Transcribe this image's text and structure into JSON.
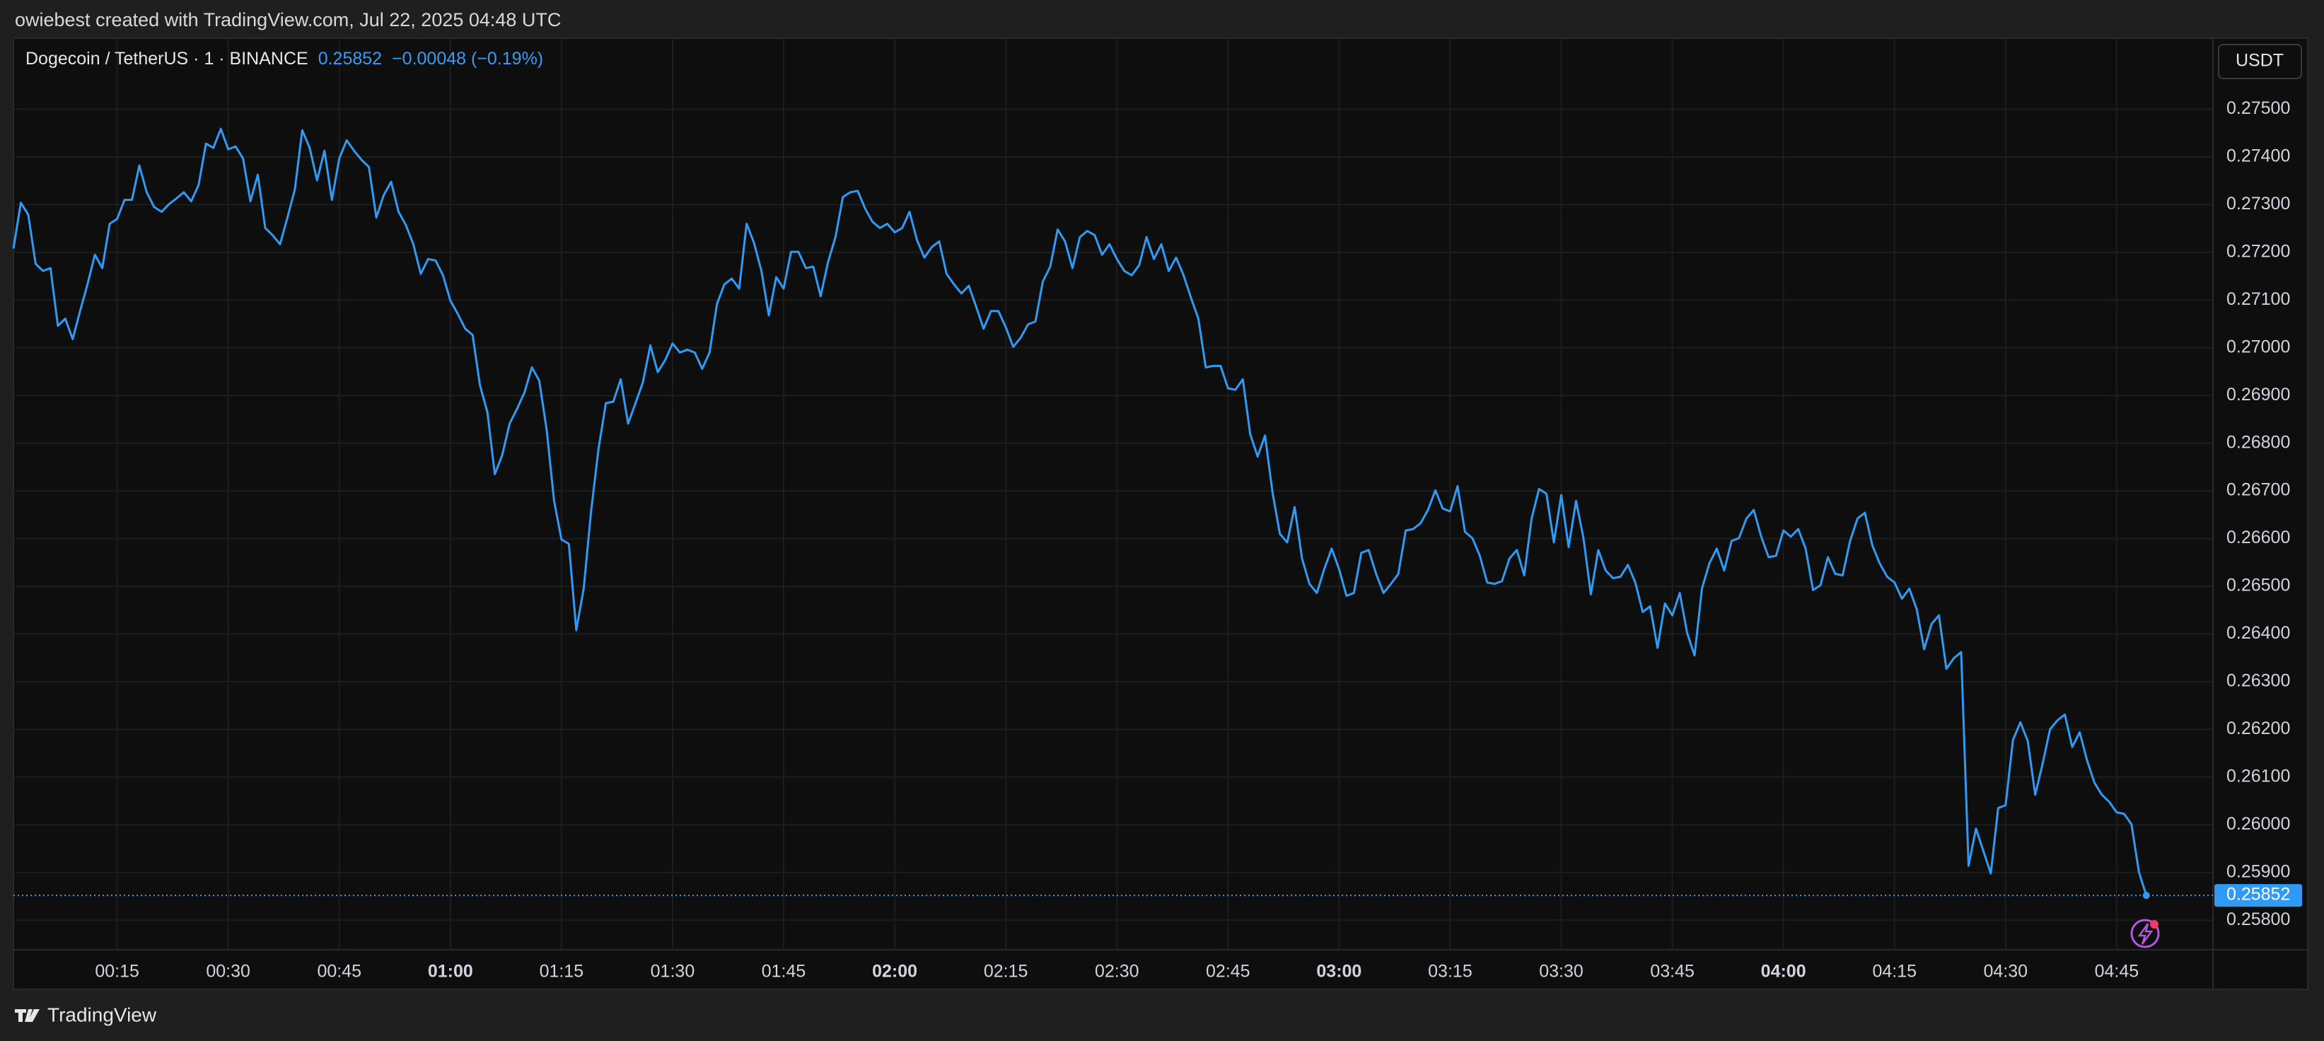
{
  "header": "owiebest created with TradingView.com, Jul 22, 2025 04:48 UTC",
  "footer": "TradingView",
  "chart_data": {
    "type": "line",
    "title": "Dogecoin / TetherUS · 1 · BINANCE",
    "change": "−0.00048 (−0.19%)",
    "currency": "USDT",
    "color": "#2f9bf5",
    "grid": true,
    "xlim": [
      "00:01",
      "04:58"
    ],
    "ylim": [
      0.25738,
      0.27649
    ],
    "xticks": [
      "00:15",
      "00:30",
      "00:45",
      "01:00",
      "01:15",
      "01:30",
      "01:45",
      "02:00",
      "02:15",
      "02:30",
      "02:45",
      "03:00",
      "03:15",
      "03:30",
      "03:45",
      "04:00",
      "04:15",
      "04:30",
      "04:45"
    ],
    "yticks": [
      {
        "value": 0.258,
        "label": "0.25800"
      },
      {
        "value": 0.259,
        "label": "0.25900"
      },
      {
        "value": 0.26,
        "label": "0.26000"
      },
      {
        "value": 0.261,
        "label": "0.26100"
      },
      {
        "value": 0.262,
        "label": "0.26200"
      },
      {
        "value": 0.263,
        "label": "0.26300"
      },
      {
        "value": 0.264,
        "label": "0.26400"
      },
      {
        "value": 0.265,
        "label": "0.26500"
      },
      {
        "value": 0.266,
        "label": "0.26600"
      },
      {
        "value": 0.267,
        "label": "0.26700"
      },
      {
        "value": 0.268,
        "label": "0.26800"
      },
      {
        "value": 0.269,
        "label": "0.26900"
      },
      {
        "value": 0.27,
        "label": "0.27000"
      },
      {
        "value": 0.271,
        "label": "0.27100"
      },
      {
        "value": 0.272,
        "label": "0.27200"
      },
      {
        "value": 0.273,
        "label": "0.27300"
      },
      {
        "value": 0.274,
        "label": "0.27400"
      },
      {
        "value": 0.275,
        "label": "0.27500"
      }
    ],
    "x": [
      "00:01",
      "00:02",
      "00:03",
      "00:04",
      "00:05",
      "00:06",
      "00:07",
      "00:08",
      "00:09",
      "00:10",
      "00:11",
      "00:12",
      "00:13",
      "00:14",
      "00:15",
      "00:16",
      "00:17",
      "00:18",
      "00:19",
      "00:20",
      "00:21",
      "00:22",
      "00:23",
      "00:24",
      "00:25",
      "00:26",
      "00:27",
      "00:28",
      "00:29",
      "00:30",
      "00:31",
      "00:32",
      "00:33",
      "00:34",
      "00:35",
      "00:36",
      "00:37",
      "00:38",
      "00:39",
      "00:40",
      "00:41",
      "00:42",
      "00:43",
      "00:44",
      "00:45",
      "00:46",
      "00:47",
      "00:48",
      "00:49",
      "00:50",
      "00:51",
      "00:52",
      "00:53",
      "00:54",
      "00:55",
      "00:56",
      "00:57",
      "00:58",
      "00:59",
      "01:00",
      "01:01",
      "01:02",
      "01:03",
      "01:04",
      "01:05",
      "01:06",
      "01:07",
      "01:08",
      "01:09",
      "01:10",
      "01:11",
      "01:12",
      "01:13",
      "01:14",
      "01:15",
      "01:16",
      "01:17",
      "01:18",
      "01:19",
      "01:20",
      "01:21",
      "01:22",
      "01:23",
      "01:24",
      "01:25",
      "01:26",
      "01:27",
      "01:28",
      "01:29",
      "01:30",
      "01:31",
      "01:32",
      "01:33",
      "01:34",
      "01:35",
      "01:36",
      "01:37",
      "01:38",
      "01:39",
      "01:40",
      "01:41",
      "01:42",
      "01:43",
      "01:44",
      "01:45",
      "01:46",
      "01:47",
      "01:48",
      "01:49",
      "01:50",
      "01:51",
      "01:52",
      "01:53",
      "01:54",
      "01:55",
      "01:56",
      "01:57",
      "01:58",
      "01:59",
      "02:00",
      "02:01",
      "02:02",
      "02:03",
      "02:04",
      "02:05",
      "02:06",
      "02:07",
      "02:08",
      "02:09",
      "02:10",
      "02:11",
      "02:12",
      "02:13",
      "02:14",
      "02:15",
      "02:16",
      "02:17",
      "02:18",
      "02:19",
      "02:20",
      "02:21",
      "02:22",
      "02:23",
      "02:24",
      "02:25",
      "02:26",
      "02:27",
      "02:28",
      "02:29",
      "02:30",
      "02:31",
      "02:32",
      "02:33",
      "02:34",
      "02:35",
      "02:36",
      "02:37",
      "02:38",
      "02:39",
      "02:40",
      "02:41",
      "02:42",
      "02:43",
      "02:44",
      "02:45",
      "02:46",
      "02:47",
      "02:48",
      "02:49",
      "02:50",
      "02:51",
      "02:52",
      "02:53",
      "02:54",
      "02:55",
      "02:56",
      "02:57",
      "02:58",
      "02:59",
      "03:00",
      "03:01",
      "03:02",
      "03:03",
      "03:04",
      "03:05",
      "03:06",
      "03:07",
      "03:08",
      "03:09",
      "03:10",
      "03:11",
      "03:12",
      "03:13",
      "03:14",
      "03:15",
      "03:16",
      "03:17",
      "03:18",
      "03:19",
      "03:20",
      "03:21",
      "03:22",
      "03:23",
      "03:24",
      "03:25",
      "03:26",
      "03:27",
      "03:28",
      "03:29",
      "03:30",
      "03:31",
      "03:32",
      "03:33",
      "03:34",
      "03:35",
      "03:36",
      "03:37",
      "03:38",
      "03:39",
      "03:40",
      "03:41",
      "03:42",
      "03:43",
      "03:44",
      "03:45",
      "03:46",
      "03:47",
      "03:48",
      "03:49",
      "03:50",
      "03:51",
      "03:52",
      "03:53",
      "03:54",
      "03:55",
      "03:56",
      "03:57",
      "03:58",
      "03:59",
      "04:00",
      "04:01",
      "04:02",
      "04:03",
      "04:04",
      "04:05",
      "04:06",
      "04:07",
      "04:08",
      "04:09",
      "04:10",
      "04:11",
      "04:12",
      "04:13",
      "04:14",
      "04:15",
      "04:16",
      "04:17",
      "04:18",
      "04:19",
      "04:20",
      "04:21",
      "04:22",
      "04:23",
      "04:24",
      "04:25",
      "04:26",
      "04:27",
      "04:28",
      "04:29",
      "04:30",
      "04:31",
      "04:32",
      "04:33",
      "04:34",
      "04:35",
      "04:36",
      "04:37",
      "04:38",
      "04:39",
      "04:40",
      "04:41",
      "04:42",
      "04:43",
      "04:44",
      "04:45",
      "04:46",
      "04:47",
      "04:48",
      "04:49"
    ],
    "values": [
      0.27208,
      0.27304,
      0.27279,
      0.27176,
      0.27161,
      0.27167,
      0.27046,
      0.27061,
      0.27018,
      0.27077,
      0.27133,
      0.27195,
      0.27167,
      0.2726,
      0.2727,
      0.2731,
      0.2731,
      0.27382,
      0.27326,
      0.27295,
      0.27285,
      0.27301,
      0.27313,
      0.27326,
      0.27307,
      0.27341,
      0.27428,
      0.27419,
      0.27459,
      0.27416,
      0.27422,
      0.27397,
      0.27307,
      0.27363,
      0.27251,
      0.27236,
      0.27217,
      0.27273,
      0.27332,
      0.27456,
      0.27419,
      0.27351,
      0.27413,
      0.2731,
      0.27397,
      0.27435,
      0.27413,
      0.27394,
      0.27379,
      0.27273,
      0.2732,
      0.27348,
      0.27285,
      0.27257,
      0.27217,
      0.27155,
      0.27186,
      0.27183,
      0.27152,
      0.27099,
      0.27071,
      0.2704,
      0.27027,
      0.26921,
      0.26865,
      0.26735,
      0.26775,
      0.26841,
      0.26872,
      0.26906,
      0.26959,
      0.26931,
      0.26828,
      0.26679,
      0.26598,
      0.26589,
      0.26408,
      0.26495,
      0.26657,
      0.26788,
      0.26884,
      0.26887,
      0.26934,
      0.26841,
      0.26884,
      0.26928,
      0.27005,
      0.26949,
      0.26974,
      0.27009,
      0.2699,
      0.26996,
      0.2699,
      0.26956,
      0.2699,
      0.27092,
      0.27133,
      0.27145,
      0.27124,
      0.2726,
      0.2722,
      0.27161,
      0.27068,
      0.27148,
      0.27124,
      0.27201,
      0.27201,
      0.27167,
      0.2717,
      0.27108,
      0.2718,
      0.27232,
      0.27316,
      0.27326,
      0.27329,
      0.27292,
      0.27264,
      0.27251,
      0.2726,
      0.27242,
      0.27251,
      0.27285,
      0.27226,
      0.27189,
      0.27211,
      0.27223,
      0.27155,
      0.27133,
      0.27114,
      0.2713,
      0.27086,
      0.2704,
      0.27077,
      0.27077,
      0.27043,
      0.27002,
      0.27021,
      0.27049,
      0.27055,
      0.27139,
      0.2717,
      0.27248,
      0.27223,
      0.27167,
      0.27232,
      0.27245,
      0.27236,
      0.27195,
      0.27217,
      0.27186,
      0.27161,
      0.27152,
      0.27173,
      0.27232,
      0.27186,
      0.27217,
      0.27161,
      0.27189,
      0.27152,
      0.27105,
      0.27061,
      0.26959,
      0.26962,
      0.26962,
      0.26915,
      0.26912,
      0.26934,
      0.26819,
      0.26772,
      0.26816,
      0.26698,
      0.2661,
      0.26592,
      0.26666,
      0.26558,
      0.26505,
      0.26486,
      0.26536,
      0.26579,
      0.26536,
      0.2648,
      0.26486,
      0.2657,
      0.26576,
      0.26526,
      0.26486,
      0.26505,
      0.26526,
      0.26617,
      0.2662,
      0.26632,
      0.2666,
      0.26701,
      0.26663,
      0.26657,
      0.2671,
      0.26614,
      0.26601,
      0.26564,
      0.26508,
      0.26505,
      0.26511,
      0.26558,
      0.26576,
      0.26523,
      0.26642,
      0.26704,
      0.26694,
      0.26592,
      0.26691,
      0.26582,
      0.26679,
      0.26601,
      0.26483,
      0.26576,
      0.26533,
      0.26517,
      0.2652,
      0.26545,
      0.26508,
      0.26446,
      0.26458,
      0.26371,
      0.26464,
      0.26439,
      0.26486,
      0.26402,
      0.26355,
      0.26495,
      0.26548,
      0.26579,
      0.26533,
      0.26595,
      0.26601,
      0.26642,
      0.2666,
      0.26604,
      0.26561,
      0.26564,
      0.26617,
      0.26604,
      0.2662,
      0.26579,
      0.26492,
      0.26502,
      0.26561,
      0.26526,
      0.26523,
      0.26595,
      0.26642,
      0.26654,
      0.26586,
      0.26548,
      0.2652,
      0.26508,
      0.26474,
      0.26495,
      0.26452,
      0.26368,
      0.26421,
      0.26439,
      0.26327,
      0.26349,
      0.26362,
      0.25914,
      0.25992,
      0.25945,
      0.25898,
      0.26035,
      0.26041,
      0.26178,
      0.26215,
      0.26175,
      0.26063,
      0.26128,
      0.262,
      0.26219,
      0.26231,
      0.26163,
      0.26194,
      0.26135,
      0.26088,
      0.26063,
      0.26048,
      0.26026,
      0.26023,
      0.26001,
      0.25901,
      0.25852
    ]
  }
}
